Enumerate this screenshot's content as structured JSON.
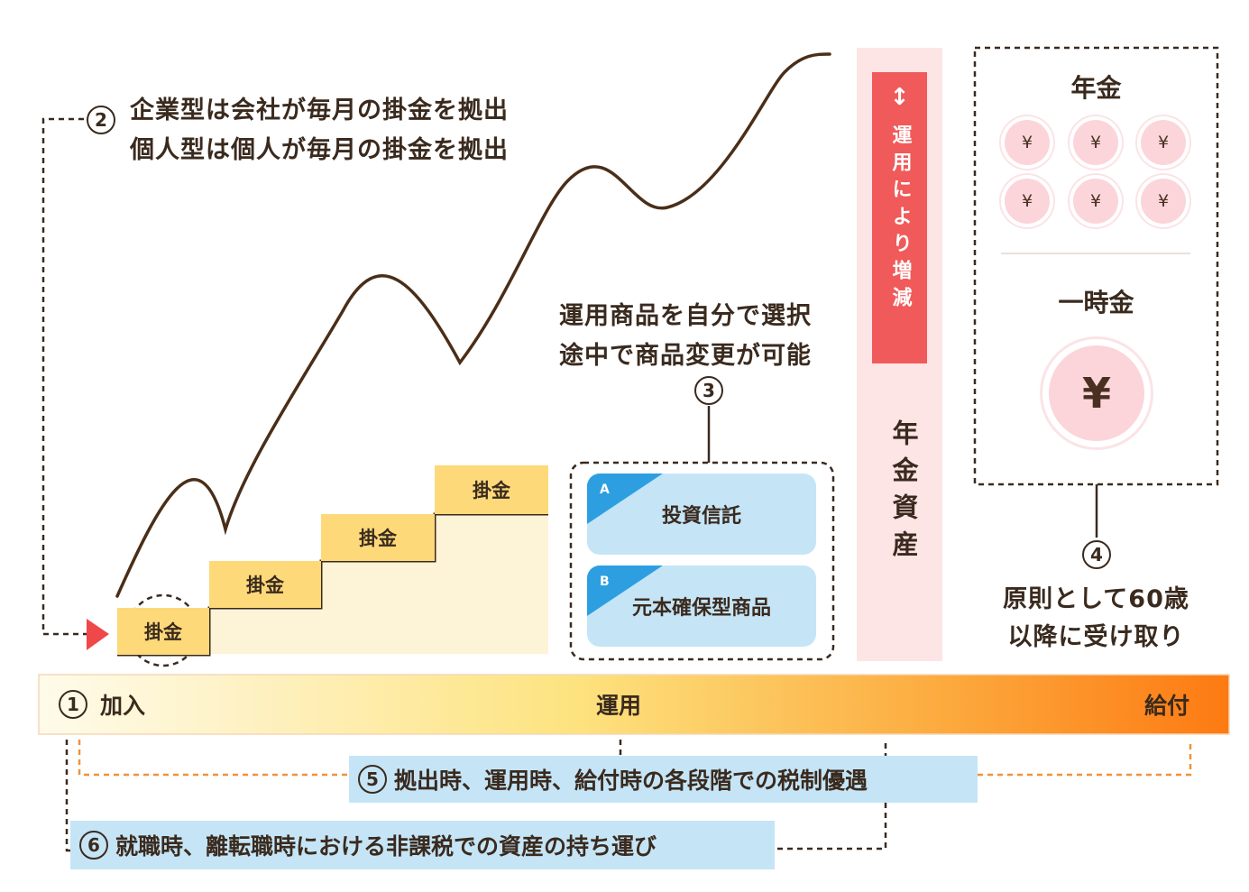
{
  "note2": {
    "num": "2",
    "line1": "企業型は会社が毎月の掛金を拠出",
    "line2": "個人型は個人が毎月の掛金を拠出"
  },
  "note3": {
    "num": "3",
    "line1": "運用商品を自分で選択",
    "line2": "途中で商品変更が可能"
  },
  "steps": [
    "掛金",
    "掛金",
    "掛金",
    "掛金",
    "掛金"
  ],
  "products": [
    {
      "letter": "A",
      "name": "投資信託"
    },
    {
      "letter": "B",
      "name": "元本確保型商品"
    }
  ],
  "asset_column": {
    "tag": "運用により増減",
    "arrow": "↕",
    "label": "年金資産"
  },
  "payout": {
    "pension_title": "年金",
    "pension_coins": [
      "¥",
      "¥",
      "¥",
      "¥",
      "¥",
      "¥"
    ],
    "lump_title": "一時金",
    "lump_coin": "¥"
  },
  "note4": {
    "num": "4",
    "line1": "原則として60歳",
    "line2": "以降に受け取り"
  },
  "timeline": {
    "num": "1",
    "join": "加入",
    "operate": "運用",
    "benefit": "給付"
  },
  "note5": {
    "num": "5",
    "text": "拠出時、運用時、給付時の各段階での税制優遇"
  },
  "note6": {
    "num": "6",
    "text": "就職時、離転職時における非課税での資産の持ち運び"
  },
  "colors": {
    "text": "#3a2a1e",
    "step_yellow": "#fdd97a",
    "step_light": "#fdf3d6",
    "product_blue": "#c5e5f7",
    "triangle_blue": "#2d9fe0",
    "pink_panel": "#fde5e6",
    "red_tag": "#f05a5a",
    "coin_pink": "#fbd5da",
    "orange_dash": "#f0923a",
    "start_arrow": "#f04848"
  }
}
